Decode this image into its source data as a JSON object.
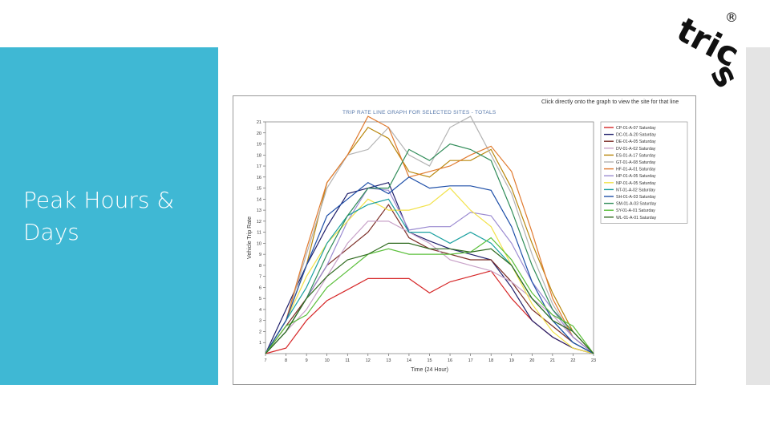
{
  "slide": {
    "title": "Peak Hours &\nDays"
  },
  "logo": {
    "text": "trics",
    "mark": "®"
  },
  "screenshot": {
    "hint": "Click directly onto the graph to view the site for that line",
    "graph_title": "TRIP RATE LINE GRAPH FOR SELECTED SITES - TOTALS"
  },
  "colors": {
    "panel": "#3fb8d4",
    "bar": "#e4e4e4"
  },
  "chart_data": {
    "type": "line",
    "xlabel": "Time (24 Hour)",
    "ylabel": "Vehicle Trip Rate",
    "xlim": [
      7,
      23
    ],
    "ylim": [
      0,
      21
    ],
    "xticks": [
      7,
      8,
      9,
      10,
      11,
      12,
      13,
      14,
      15,
      16,
      17,
      18,
      19,
      20,
      21,
      22,
      23
    ],
    "yticks": [
      1,
      2,
      3,
      4,
      5,
      6,
      7,
      8,
      9,
      10,
      11,
      12,
      13,
      14,
      15,
      16,
      17,
      18,
      19,
      20,
      21
    ],
    "legend_position": "right",
    "grid": false,
    "x": [
      7,
      8,
      9,
      10,
      11,
      12,
      13,
      14,
      15,
      16,
      17,
      18,
      19,
      20,
      21,
      22,
      23
    ],
    "series": [
      {
        "name": "CP-01-A-07 Saturday",
        "color": "#d62728",
        "values": [
          0,
          0.5,
          3,
          4.8,
          5.8,
          6.8,
          6.8,
          6.8,
          5.5,
          6.5,
          7,
          7.5,
          5,
          3,
          1.5,
          0.5,
          0
        ]
      },
      {
        "name": "DC-01-A-20 Saturday",
        "color": "#1f1f6b",
        "values": [
          0,
          4,
          8,
          11.5,
          14.5,
          15,
          15.5,
          11,
          10.2,
          9.5,
          9,
          8.5,
          6,
          3,
          1.5,
          0.5,
          0
        ]
      },
      {
        "name": "DE-01-A-05 Saturday",
        "color": "#7b2d26",
        "values": [
          0,
          2.5,
          5,
          8,
          9.5,
          11,
          13.5,
          10.5,
          9.5,
          9,
          8.5,
          8.5,
          6.5,
          4,
          2.5,
          1,
          0
        ]
      },
      {
        "name": "DV-01-A-02 Saturday",
        "color": "#c8a2c8",
        "values": [
          0,
          2,
          4,
          7,
          10,
          12,
          12,
          11,
          10,
          8.5,
          8,
          7.5,
          6.5,
          5,
          3.5,
          1.5,
          0
        ]
      },
      {
        "name": "ES-01-A-17 Saturday",
        "color": "#b8860b",
        "values": [
          0,
          3,
          8,
          15.5,
          18,
          20.5,
          19.5,
          16.5,
          16,
          17.5,
          17.5,
          18.5,
          15,
          10,
          5.5,
          2,
          0
        ]
      },
      {
        "name": "GT-01-A-08 Saturday",
        "color": "#b3b3b3",
        "values": [
          0,
          3,
          9,
          15,
          18,
          18.5,
          20.5,
          18,
          17,
          20.5,
          21.5,
          18,
          14.5,
          9,
          4.5,
          1.5,
          0
        ]
      },
      {
        "name": "HF-01-A-01 Saturday",
        "color": "#e07a2f",
        "values": [
          0,
          3,
          9.5,
          15.5,
          18,
          21.5,
          20.5,
          16,
          16.5,
          17,
          18,
          18.8,
          16.5,
          11,
          5,
          1.5,
          0
        ]
      },
      {
        "name": "HP-01-A-05 Saturday",
        "color": "#9b8bd1",
        "values": [
          0,
          2,
          5,
          8,
          12,
          15,
          14.8,
          11.2,
          11.5,
          11.5,
          12.8,
          12.5,
          10,
          6.5,
          4,
          1.5,
          0
        ]
      },
      {
        "name": "NP-01-A-05 Saturday",
        "color": "#f2e24b",
        "values": [
          0,
          3,
          7,
          10,
          12,
          14,
          13,
          13,
          13.5,
          15,
          13,
          11.5,
          8,
          4.5,
          2,
          0.5,
          0
        ]
      },
      {
        "name": "NT-01-A-02 Saturday",
        "color": "#1aa0a0",
        "values": [
          0,
          3,
          6,
          10,
          12.5,
          13.5,
          14,
          11,
          11,
          10,
          11,
          10,
          8,
          5,
          3,
          1,
          0
        ]
      },
      {
        "name": "SH-01-A-03 Saturday",
        "color": "#1e4fa8",
        "values": [
          0,
          3,
          8,
          12.5,
          14,
          15.5,
          14.5,
          16,
          15,
          15.2,
          15.2,
          14.8,
          11.5,
          6.5,
          3,
          1,
          0
        ]
      },
      {
        "name": "SM-01-A-03 Saturday",
        "color": "#2e8b57",
        "values": [
          0,
          2,
          5,
          9,
          12.5,
          15,
          15,
          18.5,
          17.5,
          19,
          18.5,
          17.5,
          13,
          8,
          4,
          2,
          0
        ]
      },
      {
        "name": "SY-01-A-01 Saturday",
        "color": "#5abf3a",
        "values": [
          0,
          2.5,
          3.5,
          6,
          7.5,
          9,
          9.5,
          9,
          9,
          9,
          9.2,
          10.5,
          8.5,
          5.5,
          3.5,
          2.5,
          0
        ]
      },
      {
        "name": "WL-01-A-01 Saturday",
        "color": "#2f6a1f",
        "values": [
          0,
          2,
          5,
          7,
          8.5,
          9,
          10,
          10,
          9.5,
          9.5,
          9.2,
          9.5,
          8,
          5,
          3,
          2,
          0
        ]
      }
    ]
  }
}
